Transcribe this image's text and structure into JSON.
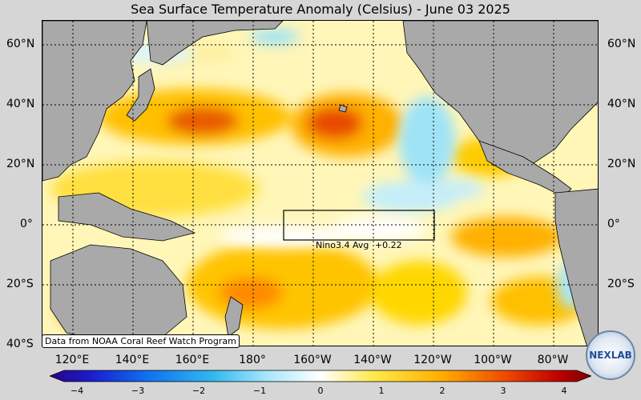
{
  "title": "Sea Surface Temperature Anomaly (Celsius) - June 03 2025",
  "credit": "Data from NOAA Coral Reef Watch Program",
  "nino": {
    "label": "Nino3.4 Avg",
    "value": "+0.22"
  },
  "lat_labels": [
    "60°N",
    "40°N",
    "20°N",
    "0°",
    "20°S",
    "40°S"
  ],
  "lon_labels": [
    "120°E",
    "140°E",
    "160°E",
    "180°",
    "160°W",
    "140°W",
    "120°W",
    "100°W",
    "80°W"
  ],
  "colorbar": {
    "ticks": [
      "−4",
      "−3",
      "−2",
      "−1",
      "0",
      "1",
      "2",
      "3",
      "4"
    ],
    "range": [
      -4,
      4
    ]
  },
  "logo_text": "NEXLAB",
  "colors": {
    "land": "#a9a9a9",
    "neutral": "#ffffff",
    "warm": "#ffd900",
    "hot": "#e02a00",
    "cool": "#3fc8f0"
  }
}
